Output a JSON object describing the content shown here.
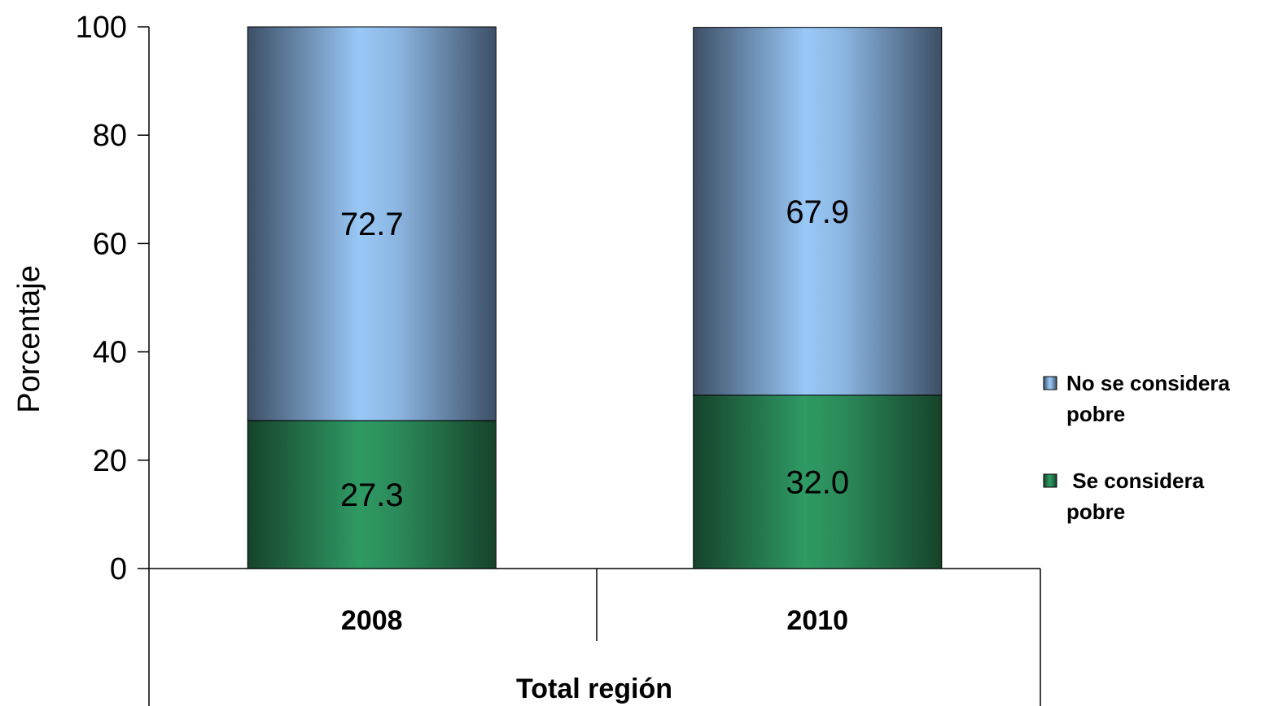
{
  "chart_data": {
    "type": "bar",
    "stacked": true,
    "categories": [
      "2008",
      "2010"
    ],
    "group_label": "Total región",
    "ylabel": "Porcentaje",
    "ylim": [
      0,
      100
    ],
    "yticks": [
      "0",
      "20",
      "40",
      "60",
      "80",
      "100"
    ],
    "grid": false,
    "legend_position": "right",
    "series": [
      {
        "name": " Se considera pobre",
        "values": [
          27.3,
          32.0
        ],
        "labels": [
          "27.3",
          "32.0"
        ],
        "color": "#2e8b57"
      },
      {
        "name": "No se considera pobre",
        "values": [
          72.7,
          67.9
        ],
        "labels": [
          "72.7",
          "67.9"
        ],
        "color": "#8db8e3"
      }
    ],
    "legend": [
      {
        "lines": [
          "No se considera",
          "pobre"
        ],
        "color": "#8db8e3"
      },
      {
        "lines": [
          " Se considera",
          "pobre"
        ],
        "color": "#2e8b57"
      }
    ]
  }
}
